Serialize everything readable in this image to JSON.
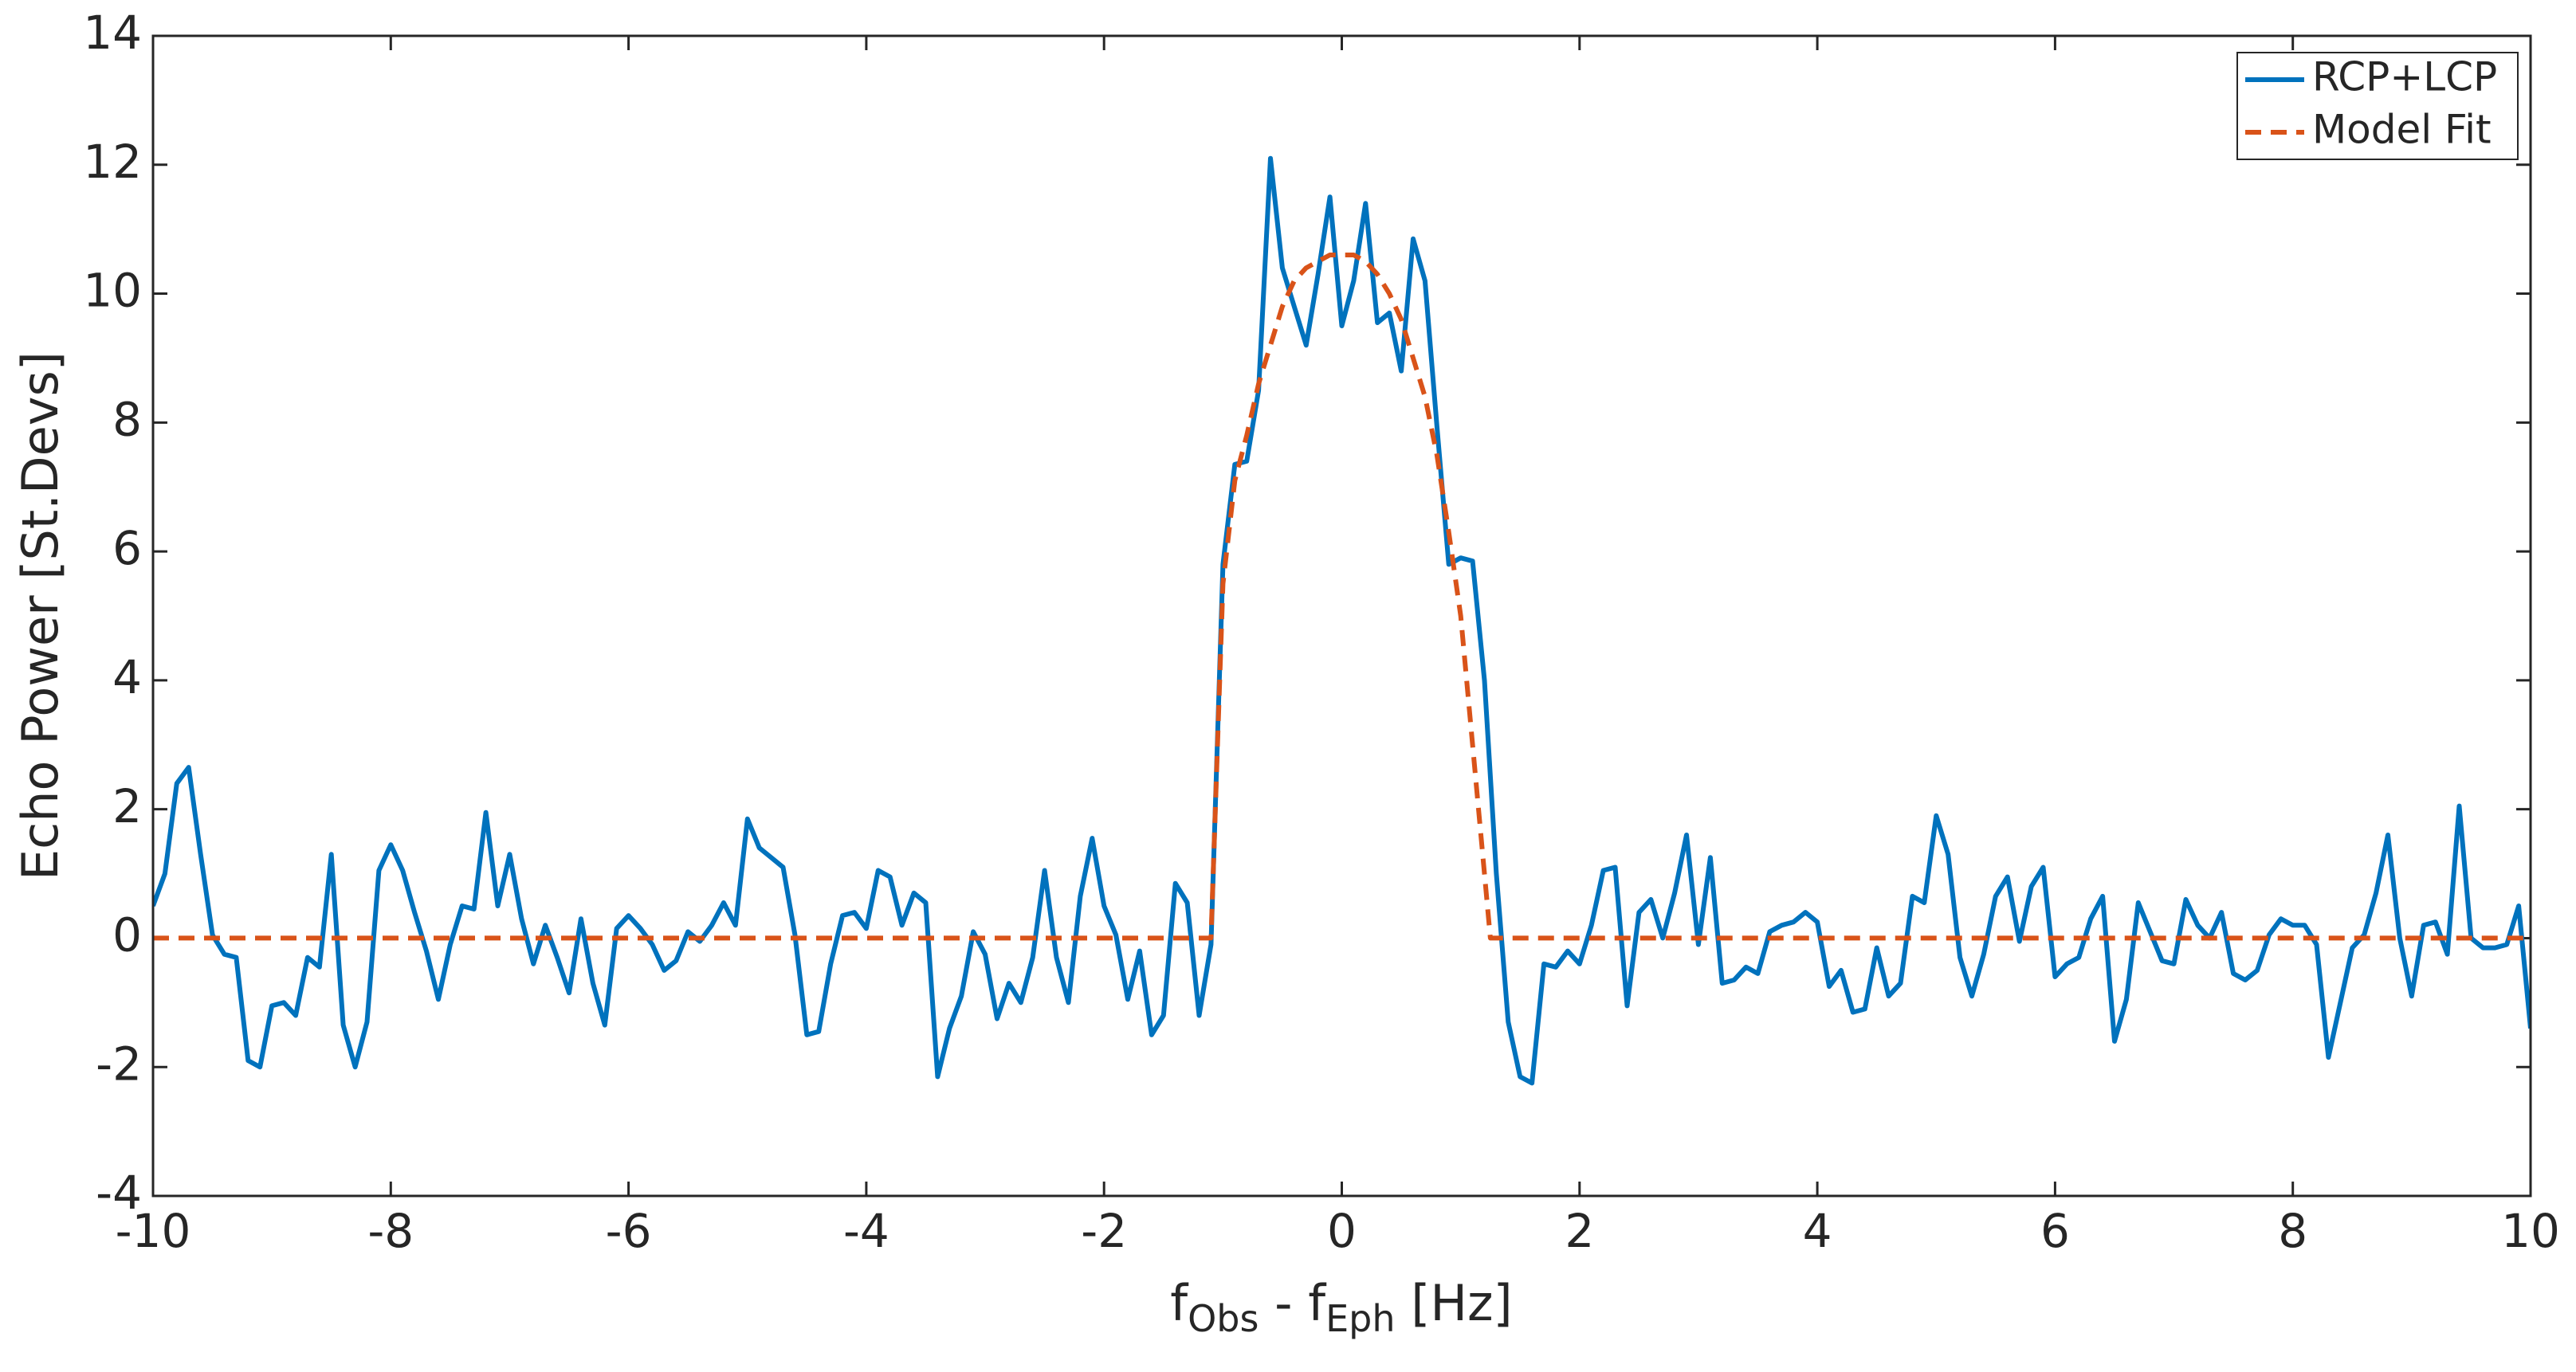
{
  "chart_data": {
    "type": "line",
    "x_label_parts": [
      "f",
      "Obs",
      " - f",
      "Eph",
      " [Hz]"
    ],
    "y_label": "Echo Power [St.Devs]",
    "xlim": [
      -10,
      10
    ],
    "ylim": [
      -4,
      14
    ],
    "xticks": [
      -10,
      -8,
      -6,
      -4,
      -2,
      0,
      2,
      4,
      6,
      8,
      10
    ],
    "yticks": [
      -4,
      -2,
      0,
      2,
      4,
      6,
      8,
      10,
      12,
      14
    ],
    "legend": "upper right",
    "series": [
      {
        "name": "RCP+LCP",
        "color": "#0072BD",
        "dash": "solid",
        "x": [
          -10,
          -9.9,
          -9.8,
          -9.7,
          -9.6,
          -9.5,
          -9.4,
          -9.3,
          -9.2,
          -9.1,
          -9,
          -8.9,
          -8.8,
          -8.7,
          -8.6,
          -8.5,
          -8.4,
          -8.3,
          -8.2,
          -8.1,
          -8,
          -7.9,
          -7.8,
          -7.7,
          -7.6,
          -7.5,
          -7.4,
          -7.3,
          -7.2,
          -7.1,
          -7,
          -6.9,
          -6.8,
          -6.7,
          -6.6,
          -6.5,
          -6.4,
          -6.3,
          -6.2,
          -6.1,
          -6,
          -5.9,
          -5.8,
          -5.7,
          -5.6,
          -5.5,
          -5.4,
          -5.3,
          -5.2,
          -5.1,
          -5,
          -4.9,
          -4.8,
          -4.7,
          -4.6,
          -4.5,
          -4.4,
          -4.3,
          -4.2,
          -4.1,
          -4,
          -3.9,
          -3.8,
          -3.7,
          -3.6,
          -3.5,
          -3.4,
          -3.3,
          -3.2,
          -3.1,
          -3,
          -2.9,
          -2.8,
          -2.7,
          -2.6,
          -2.5,
          -2.4,
          -2.3,
          -2.2,
          -2.1,
          -2,
          -1.9,
          -1.8,
          -1.7,
          -1.6,
          -1.5,
          -1.4,
          -1.3,
          -1.2,
          -1.1,
          -1,
          -0.9,
          -0.8,
          -0.7,
          -0.6,
          -0.5,
          -0.4,
          -0.3,
          -0.2,
          -0.1,
          0,
          0.1,
          0.2,
          0.3,
          0.4,
          0.5,
          0.6,
          0.7,
          0.8,
          0.9,
          1,
          1.1,
          1.2,
          1.3,
          1.4,
          1.5,
          1.6,
          1.7,
          1.8,
          1.9,
          2,
          2.1,
          2.2,
          2.3,
          2.4,
          2.5,
          2.6,
          2.7,
          2.8,
          2.9,
          3,
          3.1,
          3.2,
          3.3,
          3.4,
          3.5,
          3.6,
          3.7,
          3.8,
          3.9,
          4,
          4.1,
          4.2,
          4.3,
          4.4,
          4.5,
          4.6,
          4.7,
          4.8,
          4.9,
          5,
          5.1,
          5.2,
          5.3,
          5.4,
          5.5,
          5.6,
          5.7,
          5.8,
          5.9,
          6,
          6.1,
          6.2,
          6.3,
          6.4,
          6.5,
          6.6,
          6.7,
          6.8,
          6.9,
          7,
          7.1,
          7.2,
          7.3,
          7.4,
          7.5,
          7.6,
          7.7,
          7.8,
          7.9,
          8,
          8.1,
          8.2,
          8.3,
          8.4,
          8.5,
          8.6,
          8.7,
          8.8,
          8.9,
          9,
          9.1,
          9.2,
          9.3,
          9.4,
          9.5,
          9.6,
          9.7,
          9.8,
          9.9,
          10
        ],
        "values": [
          0.5,
          1.0,
          2.4,
          2.65,
          1.3,
          0.05,
          -0.25,
          -0.3,
          -1.9,
          -2.0,
          -1.05,
          -1.0,
          -1.2,
          -0.3,
          -0.45,
          1.3,
          -1.35,
          -2.0,
          -1.3,
          1.05,
          1.45,
          1.05,
          0.4,
          -0.2,
          -0.95,
          -0.1,
          0.5,
          0.45,
          1.95,
          0.5,
          1.3,
          0.3,
          -0.4,
          0.2,
          -0.3,
          -0.85,
          0.3,
          -0.7,
          -1.35,
          0.15,
          0.35,
          0.15,
          -0.1,
          -0.5,
          -0.35,
          0.1,
          -0.05,
          0.2,
          0.55,
          0.2,
          1.85,
          1.4,
          1.25,
          1.1,
          0.05,
          -1.5,
          -1.45,
          -0.4,
          0.35,
          0.4,
          0.15,
          1.05,
          0.95,
          0.2,
          0.7,
          0.55,
          -2.15,
          -1.4,
          -0.9,
          0.1,
          -0.25,
          -1.25,
          -0.7,
          -1.0,
          -0.3,
          1.05,
          -0.3,
          -1.0,
          0.65,
          1.55,
          0.5,
          0.05,
          -0.95,
          -0.2,
          -1.5,
          -1.2,
          0.85,
          0.55,
          -1.2,
          -0.1,
          5.8,
          7.35,
          7.4,
          8.5,
          12.1,
          10.4,
          9.8,
          9.2,
          10.3,
          11.5,
          9.5,
          10.2,
          11.4,
          9.55,
          9.7,
          8.8,
          10.85,
          10.2,
          7.95,
          5.8,
          5.9,
          5.85,
          4.0,
          1.0,
          -1.3,
          -2.15,
          -2.25,
          -0.4,
          -0.45,
          -0.2,
          -0.4,
          0.2,
          1.05,
          1.1,
          -1.05,
          0.4,
          0.6,
          0.0,
          0.7,
          1.6,
          -0.1,
          1.25,
          -0.7,
          -0.65,
          -0.45,
          -0.55,
          0.1,
          0.2,
          0.25,
          0.4,
          0.25,
          -0.75,
          -0.5,
          -1.15,
          -1.1,
          -0.15,
          -0.9,
          -0.7,
          0.65,
          0.55,
          1.9,
          1.3,
          -0.3,
          -0.9,
          -0.25,
          0.65,
          0.95,
          -0.05,
          0.8,
          1.1,
          -0.6,
          -0.4,
          -0.3,
          0.3,
          0.65,
          -1.6,
          -0.95,
          0.55,
          0.1,
          -0.35,
          -0.4,
          0.6,
          0.2,
          0.0,
          0.4,
          -0.55,
          -0.65,
          -0.5,
          0.05,
          0.3,
          0.2,
          0.2,
          -0.1,
          -1.85,
          -1.0,
          -0.15,
          0.05,
          0.7,
          1.6,
          0.0,
          -0.9,
          0.2,
          0.25,
          -0.25,
          2.05,
          0.0,
          -0.15,
          -0.15,
          -0.1,
          0.5,
          -1.4
        ]
      },
      {
        "name": "Model Fit",
        "color": "#D95319",
        "dash": "dashed",
        "x": [
          -10,
          -1.1,
          -1.0,
          -0.9,
          -0.8,
          -0.7,
          -0.6,
          -0.5,
          -0.4,
          -0.3,
          -0.2,
          -0.1,
          0,
          0.1,
          0.2,
          0.3,
          0.4,
          0.5,
          0.6,
          0.7,
          0.8,
          0.9,
          1.0,
          1.1,
          1.2,
          1.25,
          10
        ],
        "values": [
          0,
          0,
          5.5,
          7.1,
          7.8,
          8.6,
          9.2,
          9.8,
          10.2,
          10.4,
          10.5,
          10.6,
          10.6,
          10.6,
          10.5,
          10.3,
          10.0,
          9.6,
          9.0,
          8.4,
          7.5,
          6.3,
          5.0,
          3.0,
          1.0,
          0,
          0
        ]
      }
    ]
  }
}
